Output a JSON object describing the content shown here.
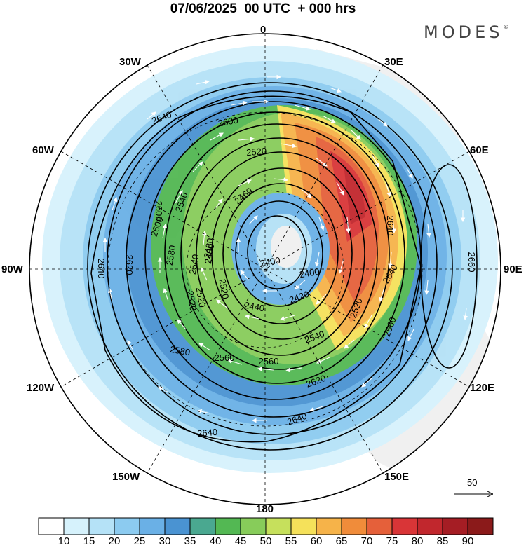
{
  "title": "07/06/2025  00 UTC  + 000 hrs",
  "brand": {
    "name": "MODES",
    "mark": "©"
  },
  "map": {
    "projection": "polar stereographic, south pole centred",
    "longitude_labels": {
      "top": "0",
      "top_right": "30E",
      "right_upper": "60E",
      "right": "90E",
      "right_lower": "120E",
      "bottom_right": "150E",
      "bottom": "180",
      "bottom_left": "150W",
      "left_lower": "120W",
      "left": "90W",
      "left_upper": "60W",
      "top_left": "30W"
    },
    "contour_labels": [
      "2640",
      "2600",
      "2520",
      "2600",
      "2460",
      "2540",
      "2600",
      "2520",
      "2480",
      "2540",
      "2520",
      "2640",
      "2620",
      "2580",
      "2520",
      "2480",
      "2400",
      "2400",
      "2420",
      "2440",
      "2640",
      "2660",
      "2660",
      "2640",
      "2620",
      "2580",
      "2560",
      "2560",
      "2540",
      "2520",
      "2640",
      "2640"
    ],
    "vector_reference": {
      "value": "50"
    }
  },
  "colorbar": {
    "ticks": [
      "10",
      "15",
      "20",
      "25",
      "30",
      "35",
      "40",
      "45",
      "50",
      "55",
      "60",
      "65",
      "70",
      "75",
      "80",
      "85",
      "90"
    ],
    "colors": [
      "#ffffff",
      "#d6f2fc",
      "#b5e2f7",
      "#8ccbf0",
      "#6ab0e6",
      "#4a93d2",
      "#4aa890",
      "#53b853",
      "#87cc5a",
      "#c6e05c",
      "#f5e15a",
      "#f6b349",
      "#f08c3a",
      "#e5603a",
      "#d93537",
      "#c1272d",
      "#a51d24",
      "#8b1a1a"
    ]
  }
}
